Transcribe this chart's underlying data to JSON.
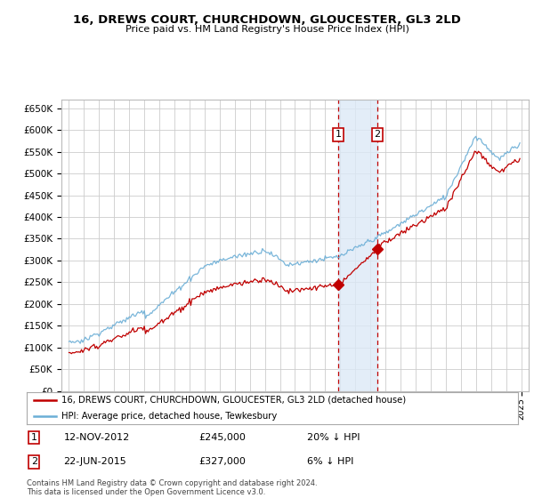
{
  "title": "16, DREWS COURT, CHURCHDOWN, GLOUCESTER, GL3 2LD",
  "subtitle": "Price paid vs. HM Land Registry's House Price Index (HPI)",
  "hpi_label": "HPI: Average price, detached house, Tewkesbury",
  "property_label": "16, DREWS COURT, CHURCHDOWN, GLOUCESTER, GL3 2LD (detached house)",
  "sale1_date": "12-NOV-2012",
  "sale1_price": 245000,
  "sale1_pct": "20% ↓ HPI",
  "sale2_date": "22-JUN-2015",
  "sale2_price": 327000,
  "sale2_pct": "6% ↓ HPI",
  "footer": "Contains HM Land Registry data © Crown copyright and database right 2024.\nThis data is licensed under the Open Government Licence v3.0.",
  "hpi_color": "#6baed6",
  "property_color": "#c00000",
  "background_color": "#ffffff",
  "grid_color": "#cccccc",
  "sale1_year": 2012.87,
  "sale2_year": 2015.47,
  "shade_color": "#dce9f7",
  "ylim_min": 0,
  "ylim_max": 670000,
  "ytick_step": 50000,
  "xmin": 1994.5,
  "xmax": 2025.5
}
